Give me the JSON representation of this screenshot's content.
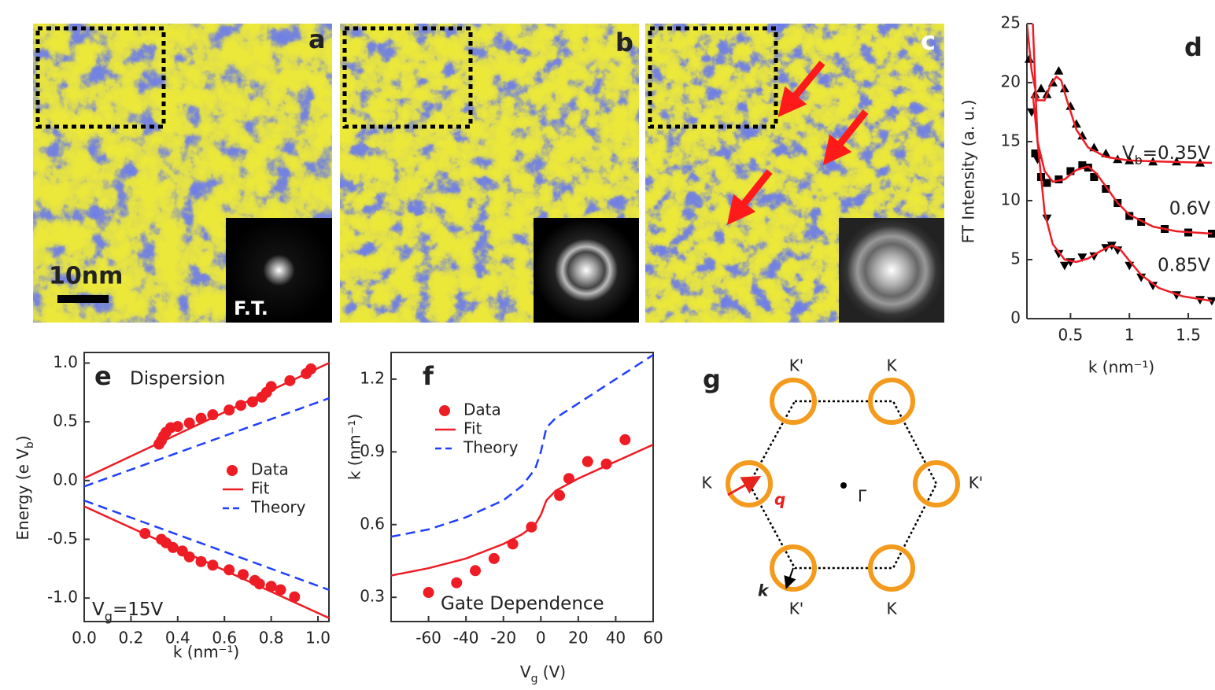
{
  "image_panels": [
    {
      "label": "a",
      "scale_bar": "10nm",
      "inset_label": "F.T."
    },
    {
      "label": "b"
    },
    {
      "label": "c"
    }
  ],
  "chart_data": [
    {
      "type": "line",
      "label": "d",
      "ylabel": "FT Intensity (a. u.)",
      "xlabel": "k (nm⁻¹)",
      "xlim": [
        0.13,
        1.7
      ],
      "ylim": [
        0,
        25
      ],
      "xticks": [
        0.5,
        1,
        1.5
      ],
      "yticks": [
        0,
        5,
        10,
        15,
        20,
        25
      ],
      "annotations": [
        [
          "V",
          "b",
          "=0.35V"
        ],
        "0.6V",
        "0.85V"
      ],
      "series": [
        {
          "style": "markers",
          "marker": "triangle-up",
          "color": "#000000",
          "x": [
            0.15,
            0.2,
            0.25,
            0.3,
            0.35,
            0.4,
            0.45,
            0.5,
            0.55,
            0.6,
            0.7,
            0.8,
            0.9,
            1.0,
            1.2,
            1.4,
            1.6
          ],
          "values": [
            22,
            19,
            19.5,
            19,
            20,
            21,
            19.5,
            18,
            16.5,
            15.5,
            14.5,
            14,
            13.5,
            13.4,
            13.3,
            13.3,
            13.2
          ]
        },
        {
          "style": "markers",
          "marker": "square",
          "color": "#000000",
          "x": [
            0.2,
            0.25,
            0.3,
            0.4,
            0.5,
            0.6,
            0.65,
            0.7,
            0.8,
            0.9,
            1.0,
            1.1,
            1.3,
            1.5,
            1.7
          ],
          "values": [
            14,
            12,
            11.5,
            11.8,
            12.5,
            13,
            12.8,
            12,
            11,
            9.8,
            8.7,
            8.2,
            7.6,
            7.3,
            7.2
          ]
        },
        {
          "style": "markers",
          "marker": "triangle-down",
          "color": "#000000",
          "x": [
            0.17,
            0.22,
            0.3,
            0.4,
            0.45,
            0.5,
            0.6,
            0.7,
            0.8,
            0.85,
            0.9,
            1.0,
            1.1,
            1.2,
            1.4,
            1.6,
            1.7
          ],
          "values": [
            17.5,
            13.5,
            8.5,
            5.5,
            4.5,
            4.8,
            5.2,
            5.3,
            6,
            6.2,
            5.8,
            4.5,
            3.5,
            2.8,
            2,
            1.6,
            1.5
          ]
        },
        {
          "style": "line",
          "color": "#ee1c24",
          "x": [
            0.13,
            0.17,
            0.22,
            0.28,
            0.33,
            0.38,
            0.42,
            0.47,
            0.55,
            0.65,
            0.8,
            1.0,
            1.3,
            1.7
          ],
          "values": [
            25,
            21,
            18.5,
            18.5,
            19.8,
            20.5,
            20.2,
            18.5,
            16,
            14.5,
            13.7,
            13.4,
            13.3,
            13.2
          ]
        },
        {
          "style": "line",
          "color": "#ee1c24",
          "x": [
            0.18,
            0.22,
            0.28,
            0.35,
            0.45,
            0.55,
            0.65,
            0.72,
            0.8,
            0.9,
            1.0,
            1.2,
            1.4,
            1.7
          ],
          "values": [
            19,
            15,
            12.5,
            11.6,
            11.8,
            12.6,
            12.9,
            12.3,
            11.2,
            9.8,
            8.8,
            7.8,
            7.4,
            7.2
          ]
        },
        {
          "style": "line",
          "color": "#ee1c24",
          "x": [
            0.18,
            0.22,
            0.28,
            0.35,
            0.45,
            0.55,
            0.65,
            0.75,
            0.85,
            0.92,
            1.0,
            1.1,
            1.25,
            1.45,
            1.7
          ],
          "values": [
            25,
            15,
            9,
            6.3,
            5,
            4.8,
            5.1,
            5.7,
            6.2,
            5.9,
            4.9,
            3.7,
            2.6,
            1.9,
            1.5
          ]
        }
      ]
    },
    {
      "type": "line",
      "label": "e",
      "ylabel": [
        "Energy (e V",
        "b",
        ")"
      ],
      "xlabel": "k (nm⁻¹)",
      "xlim": [
        0,
        1.047
      ],
      "ylim": [
        -1.2,
        1.09
      ],
      "xticks": [
        {
          "value": 0,
          "label": "0.0"
        },
        0.2,
        0.4,
        0.6,
        0.8,
        {
          "value": 1,
          "label": "1.0"
        }
      ],
      "yticks": [
        {
          "value": -1,
          "label": "-1.0"
        },
        -0.5,
        {
          "value": 0,
          "label": "0.0"
        },
        0.5,
        {
          "value": 1,
          "label": "1.0"
        }
      ],
      "annotations": [
        "Dispersion",
        [
          "V",
          "g",
          "=15V"
        ]
      ],
      "series": [
        {
          "name": "Data",
          "style": "markers",
          "marker": "circle",
          "color": "#ee1c24",
          "x": [
            0.32,
            0.33,
            0.34,
            0.35,
            0.37,
            0.4,
            0.45,
            0.5,
            0.55,
            0.62,
            0.67,
            0.72,
            0.76,
            0.78,
            0.8,
            0.88,
            0.95,
            0.97,
            0.26,
            0.33,
            0.35,
            0.38,
            0.42,
            0.45,
            0.5,
            0.55,
            0.62,
            0.68,
            0.73,
            0.75,
            0.8,
            0.84,
            0.9
          ],
          "values": [
            0.31,
            0.34,
            0.38,
            0.41,
            0.45,
            0.46,
            0.49,
            0.53,
            0.56,
            0.6,
            0.64,
            0.67,
            0.71,
            0.75,
            0.8,
            0.85,
            0.91,
            0.95,
            -0.45,
            -0.5,
            -0.53,
            -0.57,
            -0.6,
            -0.65,
            -0.69,
            -0.72,
            -0.76,
            -0.8,
            -0.85,
            -0.88,
            -0.9,
            -0.93,
            -0.99
          ]
        },
        {
          "name": "Fit",
          "style": "line",
          "color": "#ee1c24",
          "x": [
            0,
            1.047,
            null,
            0,
            1.047
          ],
          "values": [
            0.02,
            1.0,
            null,
            -0.22,
            -1.17
          ]
        },
        {
          "name": "Theory",
          "style": "dashed",
          "color": "#1f3fff",
          "x": [
            0,
            1.047,
            null,
            0,
            1.047
          ],
          "values": [
            -0.05,
            0.7,
            null,
            -0.17,
            -0.93
          ]
        }
      ]
    },
    {
      "type": "line",
      "label": "f",
      "ylabel": "k (nm⁻¹)",
      "xlabel": [
        "V",
        "g",
        " (V)"
      ],
      "xlim": [
        -80,
        60
      ],
      "ylim": [
        0.2,
        1.31
      ],
      "xticks": [
        -60,
        -40,
        -20,
        0,
        20,
        40,
        60
      ],
      "yticks": [
        0.3,
        0.6,
        0.9,
        1.2
      ],
      "annotations": [
        "Gate Dependence"
      ],
      "series": [
        {
          "name": "Data",
          "style": "markers",
          "marker": "circle",
          "color": "#ee1c24",
          "x": [
            -60,
            -45,
            -35,
            -25,
            -15,
            -5,
            10,
            15,
            25,
            35,
            45
          ],
          "values": [
            0.32,
            0.36,
            0.41,
            0.46,
            0.52,
            0.59,
            0.72,
            0.79,
            0.86,
            0.85,
            0.95
          ]
        },
        {
          "name": "Fit",
          "style": "line",
          "color": "#ee1c24",
          "x": [
            -80,
            -60,
            -40,
            -20,
            -10,
            -3,
            0,
            3,
            8,
            20,
            40,
            60
          ],
          "values": [
            0.39,
            0.42,
            0.46,
            0.52,
            0.56,
            0.6,
            0.64,
            0.7,
            0.74,
            0.79,
            0.86,
            0.93
          ]
        },
        {
          "name": "Theory",
          "style": "dashed",
          "color": "#1f3fff",
          "x": [
            -80,
            -60,
            -40,
            -20,
            -10,
            -3,
            0,
            3,
            8,
            20,
            40,
            60
          ],
          "values": [
            0.55,
            0.58,
            0.63,
            0.7,
            0.76,
            0.83,
            0.9,
            1.0,
            1.04,
            1.1,
            1.2,
            1.3
          ]
        }
      ]
    }
  ],
  "diagram": {
    "label": "g",
    "points": [
      "K'",
      "K",
      "K'",
      "K",
      "K'",
      "K"
    ],
    "center": "Γ",
    "vectors": [
      "q",
      "k"
    ]
  }
}
